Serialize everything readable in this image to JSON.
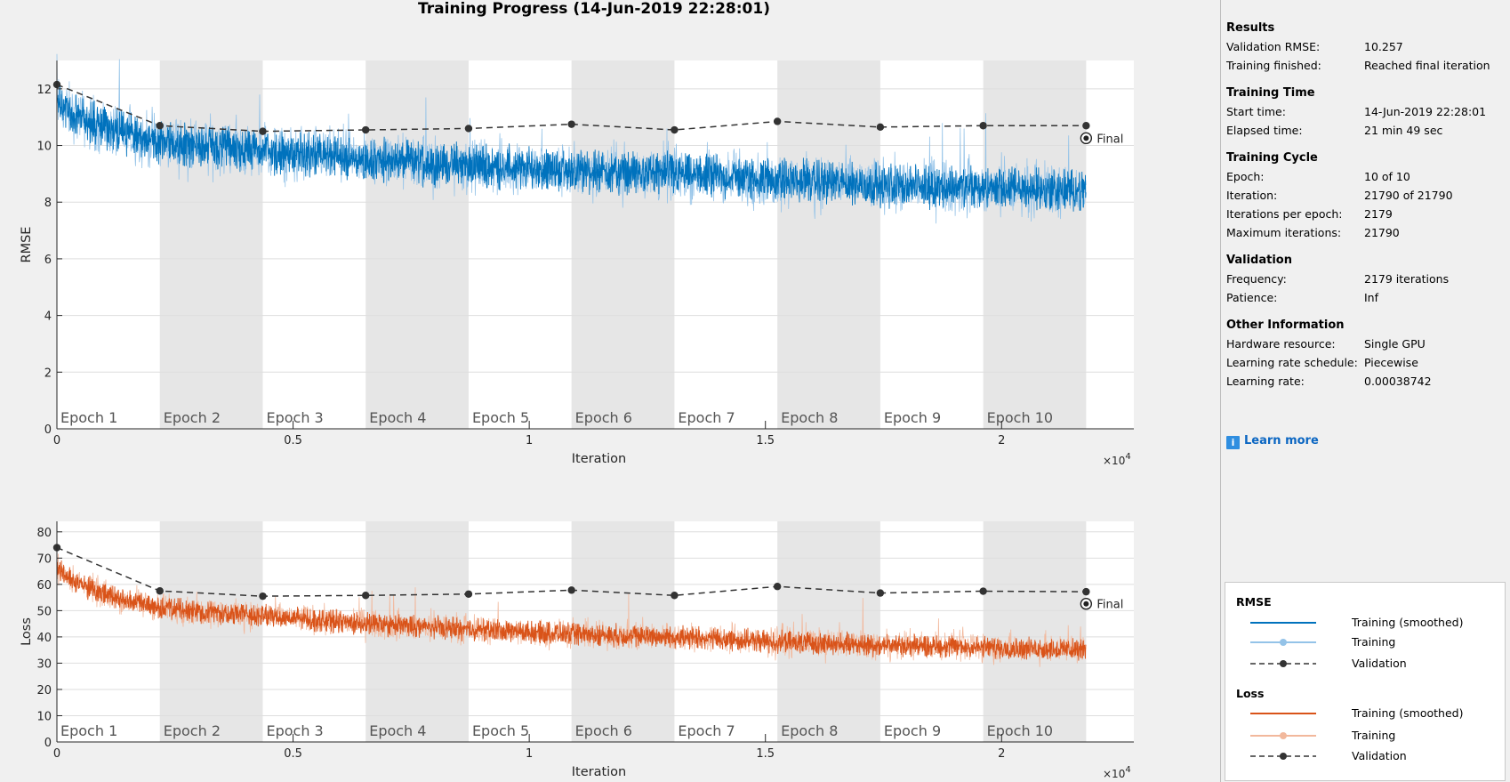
{
  "title": "Training Progress (14-Jun-2019 22:28:01)",
  "colors": {
    "rmse": "#0072bd",
    "rmse_light": "#94c3e8",
    "loss": "#d95319",
    "loss_light": "#f2b89c",
    "validation": "#333333",
    "epoch_band": "#e6e6e6"
  },
  "chart_data": [
    {
      "type": "line",
      "ylabel": "RMSE",
      "xlabel": "Iteration",
      "xlim": [
        0,
        22800
      ],
      "ylim": [
        0,
        13
      ],
      "x_ticks": [
        0,
        5000,
        10000,
        15000,
        20000
      ],
      "x_tick_labels": [
        "0",
        "0.5",
        "1",
        "1.5",
        "2"
      ],
      "x_exponent_label": "×10",
      "x_exponent_power": "4",
      "y_ticks": [
        0,
        2,
        4,
        6,
        8,
        10,
        12
      ],
      "y_tick_labels": [
        "0",
        "2",
        "4",
        "6",
        "8",
        "10",
        "12"
      ],
      "grid": "horizontal",
      "epochs": [
        "Epoch 1",
        "Epoch 2",
        "Epoch 3",
        "Epoch 4",
        "Epoch 5",
        "Epoch 6",
        "Epoch 7",
        "Epoch 8",
        "Epoch 9",
        "Epoch 10"
      ],
      "iterations_per_epoch": 2179,
      "final_label": "Final",
      "final_point": {
        "x": 21790,
        "y": 10.257
      },
      "series": [
        {
          "name": "Training (smoothed)",
          "style": "line",
          "x": [
            0,
            500,
            1000,
            2179,
            4358,
            6537,
            8716,
            10895,
            13074,
            15253,
            17432,
            19611,
            21790
          ],
          "values": [
            11.4,
            11.0,
            10.6,
            10.1,
            9.8,
            9.5,
            9.3,
            9.1,
            9.0,
            8.8,
            8.6,
            8.5,
            8.4
          ]
        },
        {
          "name": "Training",
          "style": "noisy",
          "spread": 1.6
        },
        {
          "name": "Validation",
          "style": "dashed-markers",
          "x": [
            0,
            2179,
            4358,
            6537,
            8716,
            10895,
            13074,
            15253,
            17432,
            19611,
            21790
          ],
          "values": [
            12.15,
            10.7,
            10.5,
            10.55,
            10.6,
            10.75,
            10.55,
            10.85,
            10.65,
            10.7,
            10.7
          ]
        }
      ]
    },
    {
      "type": "line",
      "ylabel": "Loss",
      "xlabel": "Iteration",
      "xlim": [
        0,
        22800
      ],
      "ylim": [
        0,
        84
      ],
      "x_ticks": [
        0,
        5000,
        10000,
        15000,
        20000
      ],
      "x_tick_labels": [
        "0",
        "0.5",
        "1",
        "1.5",
        "2"
      ],
      "x_exponent_label": "×10",
      "x_exponent_power": "4",
      "y_ticks": [
        0,
        10,
        20,
        30,
        40,
        50,
        60,
        70,
        80
      ],
      "y_tick_labels": [
        "0",
        "10",
        "20",
        "30",
        "40",
        "50",
        "60",
        "70",
        "80"
      ],
      "grid": "horizontal",
      "epochs": [
        "Epoch 1",
        "Epoch 2",
        "Epoch 3",
        "Epoch 4",
        "Epoch 5",
        "Epoch 6",
        "Epoch 7",
        "Epoch 8",
        "Epoch 9",
        "Epoch 10"
      ],
      "iterations_per_epoch": 2179,
      "final_label": "Final",
      "final_point": {
        "x": 21790,
        "y": 52.6
      },
      "series": [
        {
          "name": "Training (smoothed)",
          "style": "line",
          "x": [
            0,
            500,
            1000,
            2179,
            4358,
            6537,
            8716,
            10895,
            13074,
            15253,
            17432,
            19611,
            21790
          ],
          "values": [
            66,
            60,
            56,
            51,
            48,
            45,
            43,
            41,
            40,
            38,
            37,
            36,
            35
          ]
        },
        {
          "name": "Training",
          "style": "noisy",
          "spread": 9
        },
        {
          "name": "Validation",
          "style": "dashed-markers",
          "x": [
            0,
            2179,
            4358,
            6537,
            8716,
            10895,
            13074,
            15253,
            17432,
            19611,
            21790
          ],
          "values": [
            74,
            57.5,
            55.5,
            55.8,
            56.3,
            57.8,
            55.8,
            59.2,
            56.7,
            57.4,
            57.2
          ]
        }
      ]
    }
  ],
  "sidebar": {
    "results": {
      "heading": "Results",
      "rows": [
        {
          "k": "Validation RMSE:",
          "v": "10.257"
        },
        {
          "k": "Training finished:",
          "v": "Reached final iteration"
        }
      ]
    },
    "time": {
      "heading": "Training Time",
      "rows": [
        {
          "k": "Start time:",
          "v": "14-Jun-2019 22:28:01"
        },
        {
          "k": "Elapsed time:",
          "v": "21 min 49 sec"
        }
      ]
    },
    "cycle": {
      "heading": "Training Cycle",
      "rows": [
        {
          "k": "Epoch:",
          "v": "10 of 10"
        },
        {
          "k": "Iteration:",
          "v": "21790 of 21790"
        },
        {
          "k": "Iterations per epoch:",
          "v": "2179"
        },
        {
          "k": "Maximum iterations:",
          "v": "21790"
        }
      ]
    },
    "validation": {
      "heading": "Validation",
      "rows": [
        {
          "k": "Frequency:",
          "v": "2179 iterations"
        },
        {
          "k": "Patience:",
          "v": "Inf"
        }
      ]
    },
    "other": {
      "heading": "Other Information",
      "rows": [
        {
          "k": "Hardware resource:",
          "v": "Single GPU"
        },
        {
          "k": "Learning rate schedule:",
          "v": "Piecewise"
        },
        {
          "k": "Learning rate:",
          "v": "0.00038742"
        }
      ]
    },
    "learn_more": "Learn more",
    "learn_icon": "info-icon"
  },
  "legend": {
    "rmse_heading": "RMSE",
    "loss_heading": "Loss",
    "items": [
      "Training (smoothed)",
      "Training",
      "Validation"
    ]
  }
}
